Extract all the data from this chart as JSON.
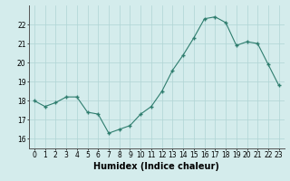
{
  "x": [
    0,
    1,
    2,
    3,
    4,
    5,
    6,
    7,
    8,
    9,
    10,
    11,
    12,
    13,
    14,
    15,
    16,
    17,
    18,
    19,
    20,
    21,
    22,
    23
  ],
  "y": [
    18.0,
    17.7,
    17.9,
    18.2,
    18.2,
    17.4,
    17.3,
    16.3,
    16.5,
    16.7,
    17.3,
    17.7,
    18.5,
    19.6,
    20.4,
    21.3,
    22.3,
    22.4,
    22.1,
    20.9,
    21.1,
    21.0,
    19.9,
    18.8
  ],
  "xlabel": "Humidex (Indice chaleur)",
  "ylim": [
    15.5,
    23.0
  ],
  "xlim": [
    -0.5,
    23.5
  ],
  "yticks": [
    16,
    17,
    18,
    19,
    20,
    21,
    22
  ],
  "xticks": [
    0,
    1,
    2,
    3,
    4,
    5,
    6,
    7,
    8,
    9,
    10,
    11,
    12,
    13,
    14,
    15,
    16,
    17,
    18,
    19,
    20,
    21,
    22,
    23
  ],
  "line_color": "#2e7d6e",
  "marker_color": "#2e7d6e",
  "bg_color": "#d4ecec",
  "grid_color": "#b0d4d4",
  "tick_label_fontsize": 5.5,
  "xlabel_fontsize": 7.0
}
